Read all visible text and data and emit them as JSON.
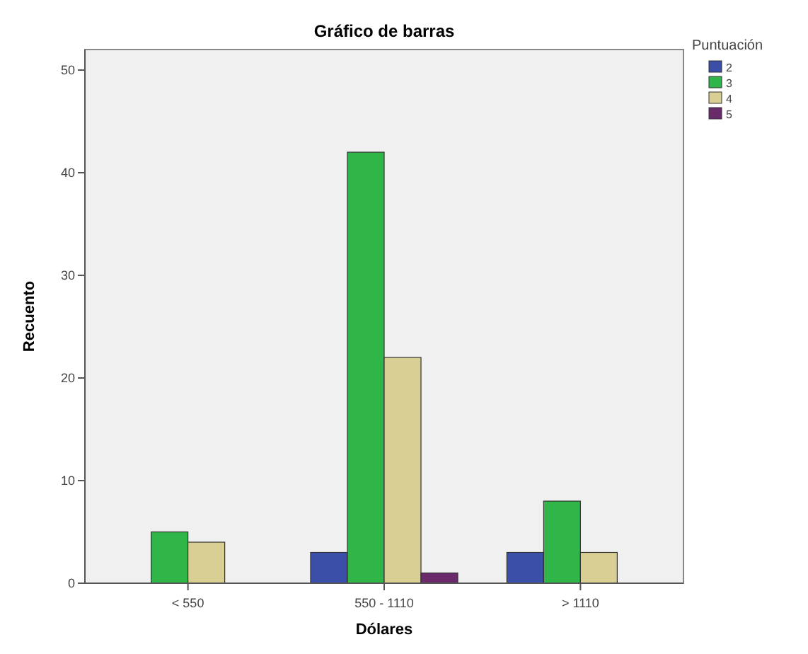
{
  "chart_data": {
    "type": "bar",
    "title": "Gráfico de barras",
    "xlabel": "Dólares",
    "ylabel": "Recuento",
    "legend_title": "Puntuación",
    "categories": [
      "< 550",
      "550 - 1110",
      "> 1110"
    ],
    "series": [
      {
        "name": "2",
        "color": "#3c4fa8",
        "values": [
          null,
          3,
          3
        ]
      },
      {
        "name": "3",
        "color": "#2fb548",
        "values": [
          5,
          42,
          8
        ]
      },
      {
        "name": "4",
        "color": "#d9cf95",
        "values": [
          4,
          22,
          3
        ]
      },
      {
        "name": "5",
        "color": "#6b2a6b",
        "values": [
          null,
          1,
          null
        ]
      }
    ],
    "ylim": [
      0,
      52
    ],
    "yticks": [
      0,
      10,
      20,
      30,
      40,
      50
    ],
    "grid": false,
    "legend": "right"
  }
}
